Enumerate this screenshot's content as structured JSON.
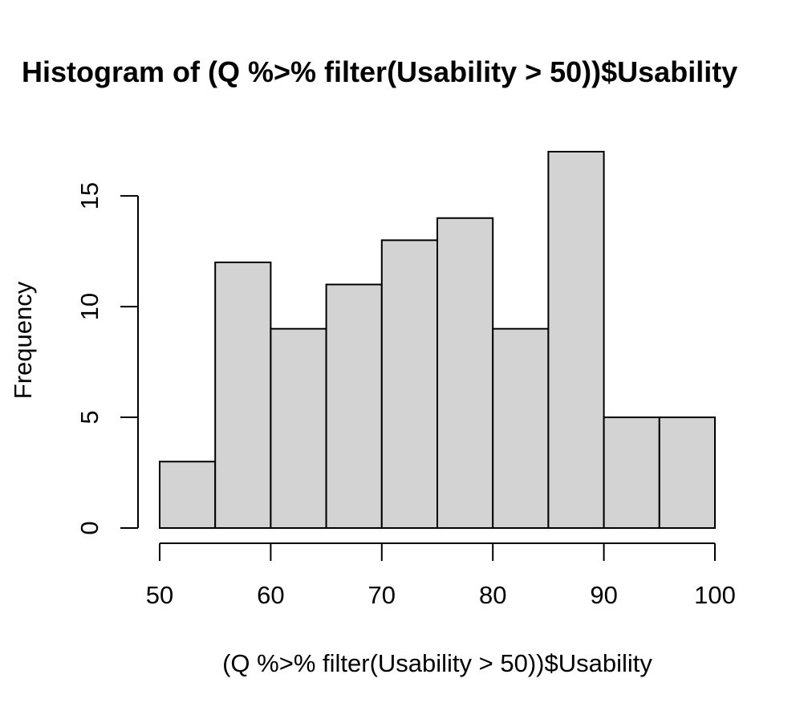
{
  "chart_data": {
    "type": "bar",
    "title": "Histogram of (Q %>% filter(Usability > 50))$Usability",
    "xlabel": "(Q %>% filter(Usability > 50))$Usability",
    "ylabel": "Frequency",
    "bins": [
      {
        "from": 50,
        "to": 55,
        "count": 3
      },
      {
        "from": 55,
        "to": 60,
        "count": 12
      },
      {
        "from": 60,
        "to": 65,
        "count": 9
      },
      {
        "from": 65,
        "to": 70,
        "count": 11
      },
      {
        "from": 70,
        "to": 75,
        "count": 13
      },
      {
        "from": 75,
        "to": 80,
        "count": 14
      },
      {
        "from": 80,
        "to": 85,
        "count": 9
      },
      {
        "from": 85,
        "to": 90,
        "count": 17
      },
      {
        "from": 90,
        "to": 95,
        "count": 5
      },
      {
        "from": 95,
        "to": 100,
        "count": 5
      }
    ],
    "x_ticks": [
      50,
      60,
      70,
      80,
      90,
      100
    ],
    "y_ticks": [
      0,
      5,
      10,
      15
    ],
    "xlim": [
      50,
      100
    ],
    "ylim": [
      0,
      17
    ],
    "grid": false,
    "legend": "none",
    "bar_color": "#d3d3d3",
    "edge_color": "#000000"
  }
}
